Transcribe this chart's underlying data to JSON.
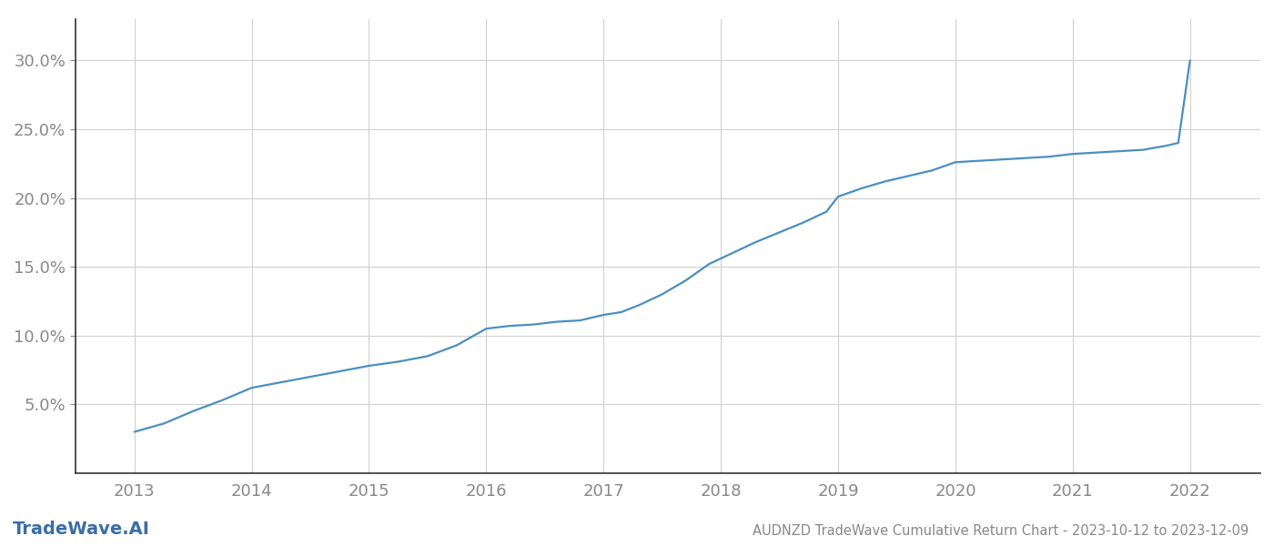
{
  "x_years": [
    2013.0,
    2013.25,
    2013.5,
    2013.75,
    2014.0,
    2014.25,
    2014.5,
    2014.75,
    2015.0,
    2015.25,
    2015.5,
    2015.75,
    2016.0,
    2016.2,
    2016.4,
    2016.6,
    2016.8,
    2017.0,
    2017.15,
    2017.3,
    2017.5,
    2017.7,
    2017.9,
    2018.1,
    2018.3,
    2018.5,
    2018.7,
    2018.9,
    2019.0,
    2019.2,
    2019.4,
    2019.6,
    2019.8,
    2020.0,
    2020.2,
    2020.4,
    2020.6,
    2020.8,
    2021.0,
    2021.2,
    2021.4,
    2021.6,
    2021.8,
    2021.9,
    2022.0
  ],
  "y_values": [
    3.0,
    3.6,
    4.5,
    5.3,
    6.2,
    6.6,
    7.0,
    7.4,
    7.8,
    8.1,
    8.5,
    9.3,
    10.5,
    10.7,
    10.8,
    11.0,
    11.1,
    11.5,
    11.7,
    12.2,
    13.0,
    14.0,
    15.2,
    16.0,
    16.8,
    17.5,
    18.2,
    19.0,
    20.1,
    20.7,
    21.2,
    21.6,
    22.0,
    22.6,
    22.7,
    22.8,
    22.9,
    23.0,
    23.2,
    23.3,
    23.4,
    23.5,
    23.8,
    24.0,
    30.0
  ],
  "line_color": "#4a8fc0",
  "background_color": "#ffffff",
  "grid_color": "#d0d0d0",
  "left_spine_color": "#333333",
  "bottom_spine_color": "#333333",
  "tick_label_color": "#888888",
  "title_text": "AUDNZD TradeWave Cumulative Return Chart - 2023-10-12 to 2023-12-09",
  "watermark_text": "TradeWave.AI",
  "watermark_color": "#3a6ea5",
  "ylim_min": 0.0,
  "ylim_max": 33.0,
  "yticks": [
    5.0,
    10.0,
    15.0,
    20.0,
    25.0,
    30.0
  ],
  "xtick_years": [
    2013,
    2014,
    2015,
    2016,
    2017,
    2018,
    2019,
    2020,
    2021,
    2022
  ],
  "xlim_min": 2012.5,
  "xlim_max": 2022.6,
  "title_fontsize": 10.5,
  "tick_fontsize": 13,
  "watermark_fontsize": 14,
  "line_width": 1.6
}
